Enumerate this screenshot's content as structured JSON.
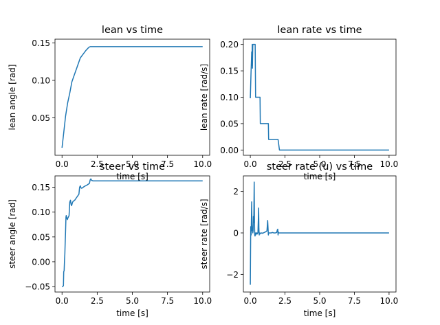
{
  "colors": {
    "line": "#1f77b4",
    "axes": "#000000",
    "background": "#ffffff"
  },
  "chart_data": [
    {
      "type": "line",
      "title": "lean vs time",
      "xlabel": "time [s]",
      "ylabel": "lean angle [rad]",
      "xlim": [
        -0.5,
        10.5
      ],
      "ylim": [
        0.0,
        0.155
      ],
      "xticks": [
        0.0,
        2.5,
        5.0,
        7.5,
        10.0
      ],
      "yticks": [
        0.05,
        0.1,
        0.15
      ],
      "xtick_labels": [
        "0.0",
        "2.5",
        "5.0",
        "7.5",
        "10.0"
      ],
      "ytick_labels": [
        "0.05",
        "0.10",
        "0.15"
      ],
      "grid": false,
      "series": [
        {
          "x": [
            0.0,
            0.12,
            0.25,
            0.4,
            0.55,
            0.7,
            0.85,
            1.0,
            1.15,
            1.3,
            1.5,
            1.7,
            1.9,
            2.0,
            3.0,
            5.0,
            7.5,
            10.0
          ],
          "y": [
            0.01,
            0.03,
            0.052,
            0.07,
            0.083,
            0.098,
            0.106,
            0.114,
            0.122,
            0.13,
            0.135,
            0.14,
            0.144,
            0.145,
            0.145,
            0.145,
            0.145,
            0.145
          ]
        }
      ]
    },
    {
      "type": "line",
      "title": "lean rate vs time",
      "xlabel": "time [s]",
      "ylabel": "lean rate [rad/s]",
      "xlim": [
        -0.5,
        10.5
      ],
      "ylim": [
        -0.01,
        0.21
      ],
      "xticks": [
        0.0,
        2.5,
        5.0,
        7.5,
        10.0
      ],
      "yticks": [
        0.0,
        0.05,
        0.1,
        0.15,
        0.2
      ],
      "xtick_labels": [
        "0.0",
        "2.5",
        "5.0",
        "7.5",
        "10.0"
      ],
      "ytick_labels": [
        "0.00",
        "0.05",
        "0.10",
        "0.15",
        "0.20"
      ],
      "grid": false,
      "series": [
        {
          "x": [
            0.0,
            0.05,
            0.1,
            0.12,
            0.14,
            0.15,
            0.18,
            0.2,
            0.22,
            0.25,
            0.3,
            0.35,
            0.38,
            0.4,
            0.6,
            0.7,
            0.72,
            1.2,
            1.3,
            1.32,
            2.0,
            2.05,
            2.1,
            2.2,
            3.0,
            5.0,
            7.5,
            10.0
          ],
          "y": [
            0.098,
            0.145,
            0.186,
            0.16,
            0.2,
            0.155,
            0.2,
            0.2,
            0.2,
            0.2,
            0.2,
            0.2,
            0.1,
            0.1,
            0.1,
            0.1,
            0.05,
            0.05,
            0.05,
            0.02,
            0.02,
            0.01,
            0.0,
            0.0,
            0.0,
            0.0,
            0.0,
            0.0
          ]
        }
      ]
    },
    {
      "type": "line",
      "title": "steer vs time",
      "xlabel": "time [s]",
      "ylabel": "steer angle [rad]",
      "xlim": [
        -0.5,
        10.5
      ],
      "ylim": [
        -0.061,
        0.173
      ],
      "xticks": [
        0.0,
        2.5,
        5.0,
        7.5,
        10.0
      ],
      "yticks": [
        -0.05,
        0.0,
        0.05,
        0.1,
        0.15
      ],
      "xtick_labels": [
        "0.0",
        "2.5",
        "5.0",
        "7.5",
        "10.0"
      ],
      "ytick_labels": [
        "−0.05",
        "0.00",
        "0.05",
        "0.10",
        "0.15"
      ],
      "grid": false,
      "series": [
        {
          "x": [
            0.0,
            0.05,
            0.1,
            0.12,
            0.15,
            0.18,
            0.2,
            0.22,
            0.25,
            0.28,
            0.3,
            0.35,
            0.38,
            0.4,
            0.45,
            0.5,
            0.55,
            0.6,
            0.65,
            0.68,
            0.7,
            0.75,
            0.8,
            0.9,
            1.0,
            1.1,
            1.2,
            1.25,
            1.3,
            1.35,
            1.4,
            1.5,
            1.6,
            1.8,
            1.95,
            2.0,
            2.05,
            2.1,
            2.2,
            2.5,
            3.0,
            5.0,
            7.5,
            10.0
          ],
          "y": [
            -0.05,
            -0.05,
            -0.048,
            -0.02,
            -0.018,
            0.005,
            0.015,
            0.035,
            0.06,
            0.09,
            0.093,
            0.087,
            0.085,
            0.087,
            0.09,
            0.093,
            0.12,
            0.124,
            0.115,
            0.113,
            0.115,
            0.12,
            0.122,
            0.124,
            0.128,
            0.132,
            0.136,
            0.15,
            0.153,
            0.149,
            0.148,
            0.15,
            0.152,
            0.155,
            0.158,
            0.165,
            0.167,
            0.164,
            0.163,
            0.163,
            0.163,
            0.163,
            0.163,
            0.163
          ]
        }
      ]
    },
    {
      "type": "line",
      "title": "steer rate (u) vs time",
      "xlabel": "time [s]",
      "ylabel": "steer rate [rad/s]",
      "xlim": [
        -0.5,
        10.5
      ],
      "ylim": [
        -2.85,
        2.75
      ],
      "xticks": [
        0.0,
        2.5,
        5.0,
        7.5,
        10.0
      ],
      "yticks": [
        -2,
        0,
        2
      ],
      "xtick_labels": [
        "0.0",
        "2.5",
        "5.0",
        "7.5",
        "10.0"
      ],
      "ytick_labels": [
        "−2",
        "0",
        "2"
      ],
      "grid": false,
      "series": [
        {
          "x": [
            0.0,
            0.03,
            0.06,
            0.1,
            0.12,
            0.14,
            0.16,
            0.18,
            0.2,
            0.22,
            0.25,
            0.28,
            0.3,
            0.32,
            0.34,
            0.36,
            0.38,
            0.4,
            0.42,
            0.45,
            0.48,
            0.5,
            0.52,
            0.55,
            0.6,
            0.62,
            0.64,
            0.66,
            0.7,
            0.75,
            0.8,
            0.85,
            0.9,
            0.95,
            1.0,
            1.1,
            1.2,
            1.25,
            1.28,
            1.3,
            1.32,
            1.35,
            1.4,
            1.5,
            1.6,
            1.7,
            1.8,
            1.9,
            1.95,
            1.98,
            2.0,
            2.02,
            2.05,
            2.1,
            2.2,
            3.0,
            5.0,
            7.5,
            10.0
          ],
          "y": [
            -2.5,
            0.3,
            -0.1,
            1.5,
            0.4,
            0.1,
            0.2,
            0.0,
            0.1,
            0.8,
            0.5,
            2.45,
            0.5,
            -0.1,
            -0.15,
            0.0,
            -0.1,
            -0.05,
            0.0,
            -0.05,
            0.0,
            -0.05,
            0.0,
            0.0,
            1.2,
            0.2,
            -0.1,
            0.0,
            -0.05,
            0.0,
            0.0,
            -0.02,
            0.0,
            0.0,
            0.02,
            0.05,
            0.1,
            0.6,
            0.2,
            -0.1,
            0.0,
            0.0,
            0.0,
            0.0,
            0.02,
            0.0,
            0.0,
            0.02,
            0.15,
            0.18,
            -0.1,
            0.05,
            0.0,
            0.0,
            0.0,
            0.0,
            0.0,
            0.0,
            0.0
          ]
        }
      ]
    }
  ]
}
